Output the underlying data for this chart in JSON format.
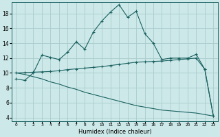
{
  "xlabel": "Humidex (Indice chaleur)",
  "background_color": "#cce8e8",
  "grid_color": "#aacccc",
  "line_color": "#1a6060",
  "x_ticks": [
    0,
    1,
    2,
    3,
    4,
    5,
    6,
    7,
    8,
    9,
    10,
    11,
    12,
    13,
    14,
    15,
    16,
    17,
    18,
    19,
    20,
    21,
    22,
    23
  ],
  "y_ticks": [
    4,
    6,
    8,
    10,
    12,
    14,
    16,
    18
  ],
  "ylim": [
    3.5,
    19.5
  ],
  "xlim": [
    -0.5,
    23.5
  ],
  "line1_y": [
    9.2,
    9.0,
    10.0,
    12.4,
    12.1,
    11.8,
    12.8,
    14.2,
    13.2,
    15.5,
    17.0,
    18.2,
    19.2,
    17.5,
    18.3,
    15.3,
    14.0,
    11.8,
    12.0,
    12.0,
    12.0,
    12.5,
    10.5,
    4.2
  ],
  "line2_y": [
    10.0,
    10.05,
    10.1,
    10.15,
    10.2,
    10.3,
    10.45,
    10.55,
    10.65,
    10.75,
    10.85,
    11.0,
    11.15,
    11.3,
    11.45,
    11.5,
    11.55,
    11.6,
    11.7,
    11.8,
    11.9,
    12.0,
    10.5,
    4.2
  ],
  "line3_y": [
    10.0,
    9.8,
    9.5,
    9.2,
    8.8,
    8.5,
    8.1,
    7.8,
    7.4,
    7.1,
    6.8,
    6.5,
    6.2,
    5.9,
    5.6,
    5.4,
    5.2,
    5.0,
    4.9,
    4.8,
    4.7,
    4.6,
    4.4,
    4.2
  ]
}
